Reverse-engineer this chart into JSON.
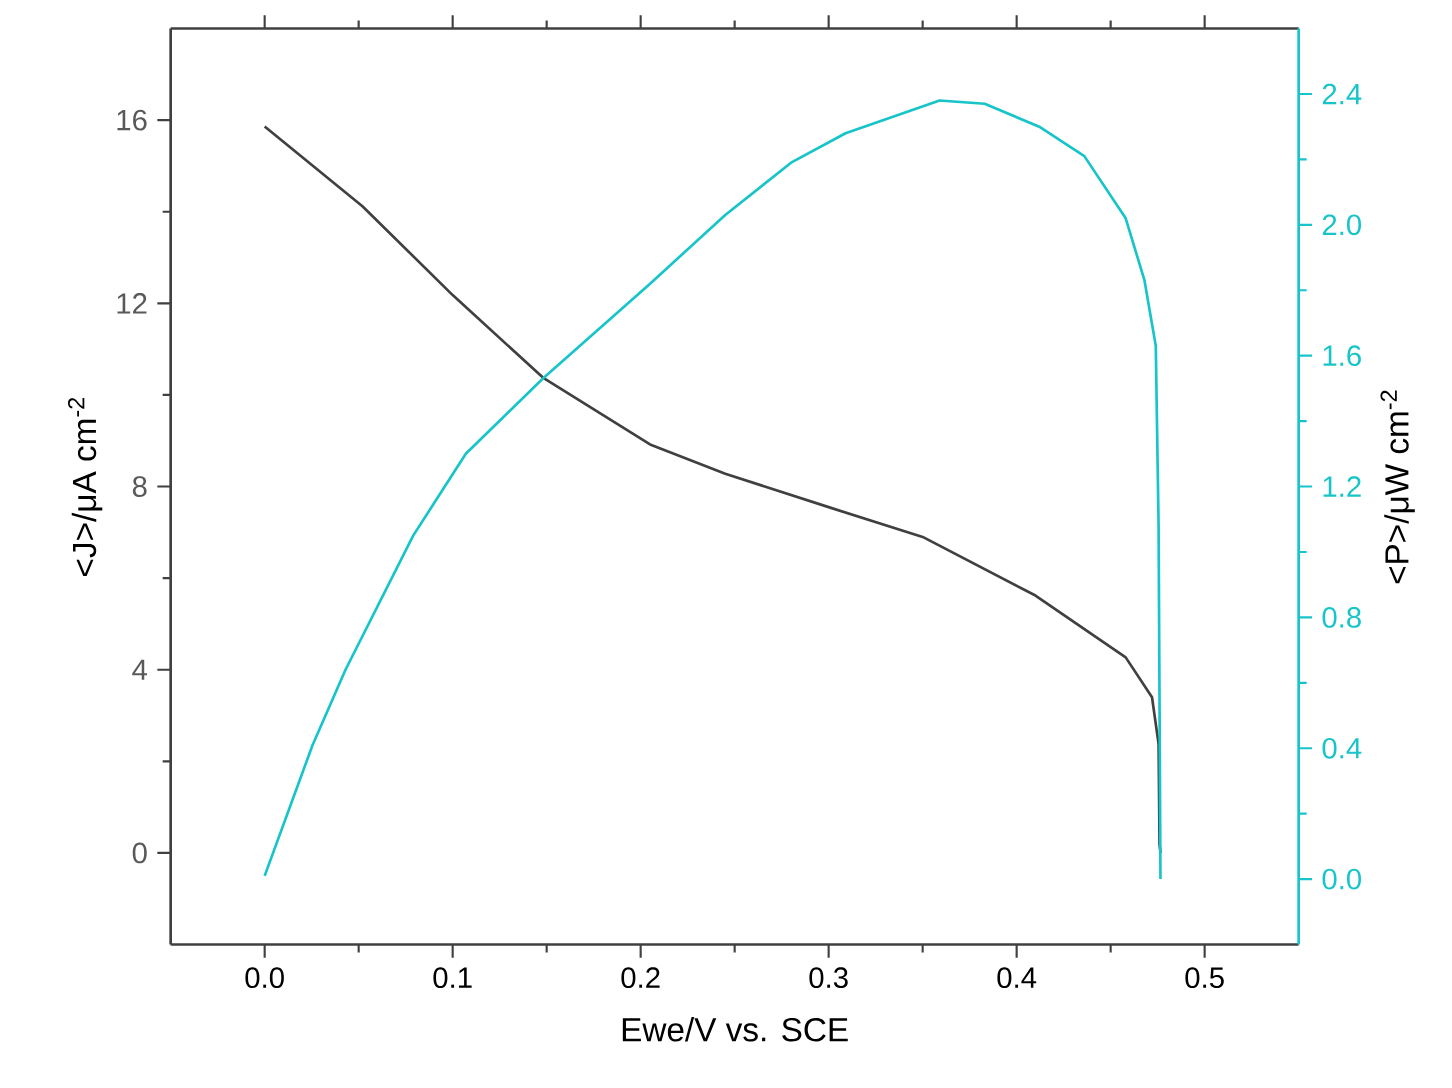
{
  "chart_data": {
    "type": "line",
    "xlabel": "Ewe/V vs. SCE",
    "ylabel": "<J>/μA cm$^{-2}$",
    "y2label": "<P>/μW cm$^{-2}$",
    "xlim": [
      -0.05,
      0.55
    ],
    "ylim": [
      -2,
      18
    ],
    "y2lim": [
      -0.2,
      2.6
    ],
    "xticks": [
      {
        "value": 0,
        "label": "0.0"
      },
      {
        "value": 0.1,
        "label": "0.1"
      },
      {
        "value": 0.2,
        "label": "0.2"
      },
      {
        "value": 0.3,
        "label": "0.3"
      },
      {
        "value": 0.4,
        "label": "0.4"
      },
      {
        "value": 0.5,
        "label": "0.5"
      }
    ],
    "yticks": [
      0,
      4,
      8,
      12,
      16
    ],
    "y2ticks": [
      {
        "value": 0,
        "label": "0.0"
      },
      {
        "value": 0.4,
        "label": "0.4"
      },
      {
        "value": 0.8,
        "label": "0.8"
      },
      {
        "value": 1.2,
        "label": "1.2"
      },
      {
        "value": 1.6,
        "label": "1.6"
      },
      {
        "value": 2.0,
        "label": "2.0"
      },
      {
        "value": 2.4,
        "label": "2.4"
      }
    ],
    "marker": "none",
    "line_style": "solid",
    "series": [
      {
        "color": "#404040",
        "x": [
          0,
          0.052,
          0.1,
          0.148,
          0.205,
          0.245,
          0.3,
          0.35,
          0.41,
          0.458,
          0.472,
          0.4755,
          0.476,
          0.4765
        ],
        "values": [
          15.86,
          14.12,
          12.18,
          10.38,
          8.92,
          8.28,
          7.55,
          6.9,
          5.62,
          4.27,
          3.4,
          2.38,
          0.19,
          0
        ]
      },
      {
        "color": "#17c4c9",
        "axis": "y2",
        "x": [
          0,
          0.0255,
          0.043,
          0.079,
          0.107,
          0.148,
          0.205,
          0.245,
          0.28,
          0.309,
          0.359,
          0.383,
          0.412,
          0.436,
          0.458,
          0.468,
          0.474,
          0.4755,
          0.4765
        ],
        "values": [
          0.01,
          0.41,
          0.64,
          1.05,
          1.3,
          1.53,
          1.82,
          2.03,
          2.19,
          2.28,
          2.38,
          2.37,
          2.3,
          2.21,
          2.02,
          1.83,
          1.63,
          1.08,
          0.0
        ]
      }
    ]
  }
}
